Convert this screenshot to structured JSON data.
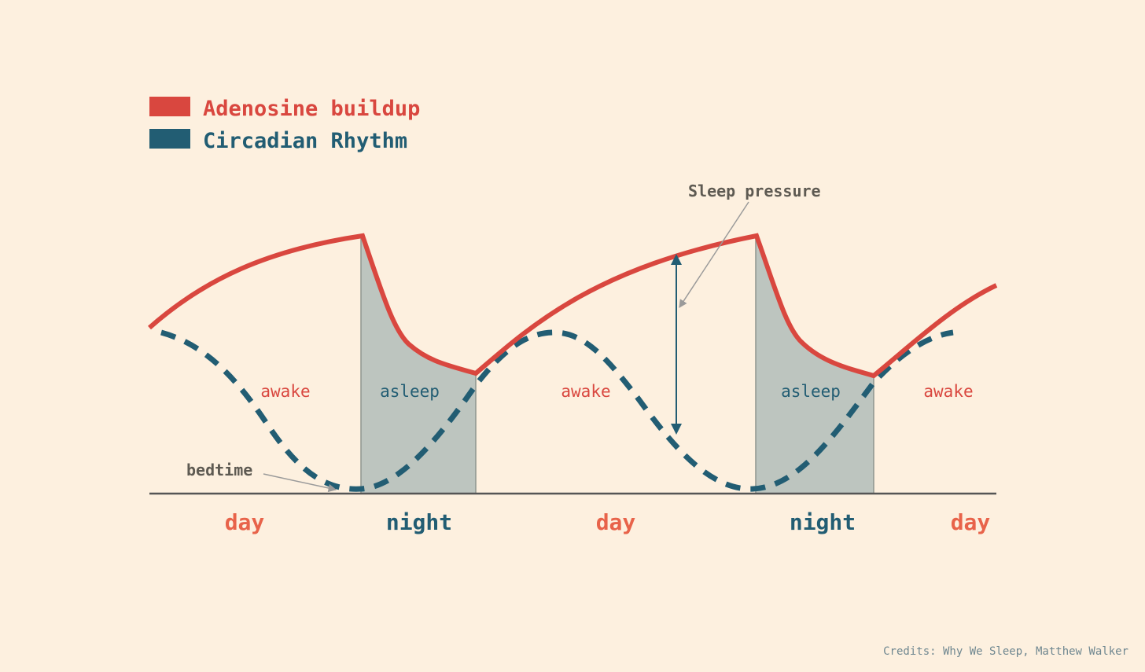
{
  "colors": {
    "background": "#fdf0df",
    "adenosine": "#d9473f",
    "circadian": "#225d73",
    "sleep_fill": "#bdc5bf",
    "axis": "#555555",
    "annotation": "#5e5a52",
    "annotation_pointer": "#9a9a9a",
    "credits": "#6f8790"
  },
  "legend": {
    "adenosine_label": "Adenosine buildup",
    "circadian_label": "Circadian Rhythm"
  },
  "annotations": {
    "sleep_pressure": "Sleep pressure",
    "bedtime": "bedtime"
  },
  "regions": [
    {
      "label": "awake",
      "kind": "awake"
    },
    {
      "label": "asleep",
      "kind": "asleep"
    },
    {
      "label": "awake",
      "kind": "awake"
    },
    {
      "label": "asleep",
      "kind": "asleep"
    },
    {
      "label": "awake",
      "kind": "awake"
    }
  ],
  "periods": [
    {
      "label": "day",
      "kind": "day"
    },
    {
      "label": "night",
      "kind": "night"
    },
    {
      "label": "day",
      "kind": "day"
    },
    {
      "label": "night",
      "kind": "night"
    },
    {
      "label": "day",
      "kind": "day"
    }
  ],
  "credits": "Credits: Why We Sleep, Matthew Walker"
}
